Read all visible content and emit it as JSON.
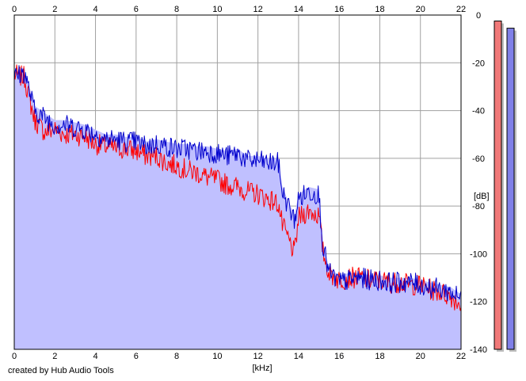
{
  "credit": "created by Hub Audio Tools",
  "chart_data": {
    "type": "line",
    "title": "",
    "xlabel": "[kHz]",
    "ylabel": "[dB]",
    "xlim": [
      0,
      22
    ],
    "ylim": [
      -140,
      0
    ],
    "x_ticks": [
      "0",
      "2",
      "4",
      "6",
      "8",
      "10",
      "12",
      "14",
      "16",
      "18",
      "20",
      "22"
    ],
    "y_ticks": [
      "0",
      "-20",
      "-40",
      "-60",
      "-80",
      "-100",
      "-120",
      "-140"
    ],
    "grid": true,
    "legend": "none",
    "colors": {
      "fill": "#c0c0ff",
      "channel_a": "#ff0000",
      "channel_b": "#0000cc",
      "meter_a": "#f07878",
      "meter_b": "#8080e8"
    },
    "level_meters": [
      {
        "channel": "a",
        "level_db": -2.5
      },
      {
        "channel": "b",
        "level_db": -5.5
      }
    ],
    "series": [
      {
        "color": "#0000cc",
        "x": [
          0,
          0.5,
          1,
          1.5,
          2,
          2.5,
          3,
          3.5,
          4,
          4.5,
          5,
          5.5,
          6,
          6.5,
          7,
          7.5,
          8,
          8.5,
          9,
          9.5,
          10,
          10.5,
          11,
          11.5,
          12,
          12.5,
          13,
          13.2,
          13.5,
          13.8,
          14,
          14.5,
          15,
          15.2,
          15.5,
          16,
          16.5,
          17,
          17.5,
          18,
          18.5,
          19,
          19.5,
          20,
          20.5,
          21,
          21.5,
          22
        ],
        "values": [
          -26,
          -24,
          -40,
          -43,
          -46,
          -46,
          -47,
          -48,
          -50,
          -52,
          -52,
          -53,
          -53,
          -55,
          -54,
          -55,
          -56,
          -56,
          -57,
          -57,
          -58,
          -59,
          -58,
          -61,
          -61,
          -62,
          -62,
          -74,
          -80,
          -86,
          -77,
          -74,
          -75,
          -97,
          -108,
          -112,
          -111,
          -110,
          -111,
          -111,
          -112,
          -112,
          -112,
          -113,
          -114,
          -115,
          -116,
          -119
        ]
      },
      {
        "color": "#ff0000",
        "x": [
          0,
          0.5,
          1,
          1.5,
          2,
          2.5,
          3,
          3.5,
          4,
          4.5,
          5,
          5.5,
          6,
          6.5,
          7,
          7.5,
          8,
          8.5,
          9,
          9.5,
          10,
          10.5,
          11,
          11.5,
          12,
          12.5,
          13,
          13.2,
          13.5,
          13.8,
          14,
          14.5,
          15,
          15.2,
          15.5,
          16,
          16.5,
          17,
          17.5,
          18,
          18.5,
          19,
          19.5,
          20,
          20.5,
          21,
          21.5,
          22
        ],
        "values": [
          -25,
          -26,
          -44,
          -49,
          -48,
          -50,
          -50,
          -51,
          -54,
          -55,
          -56,
          -56,
          -57,
          -59,
          -59,
          -62,
          -63,
          -65,
          -66,
          -68,
          -69,
          -71,
          -72,
          -74,
          -75,
          -77,
          -79,
          -88,
          -94,
          -100,
          -85,
          -82,
          -84,
          -99,
          -108,
          -111,
          -110,
          -110,
          -111,
          -111,
          -112,
          -112,
          -113,
          -113,
          -115,
          -116,
          -118,
          -121
        ]
      }
    ]
  }
}
